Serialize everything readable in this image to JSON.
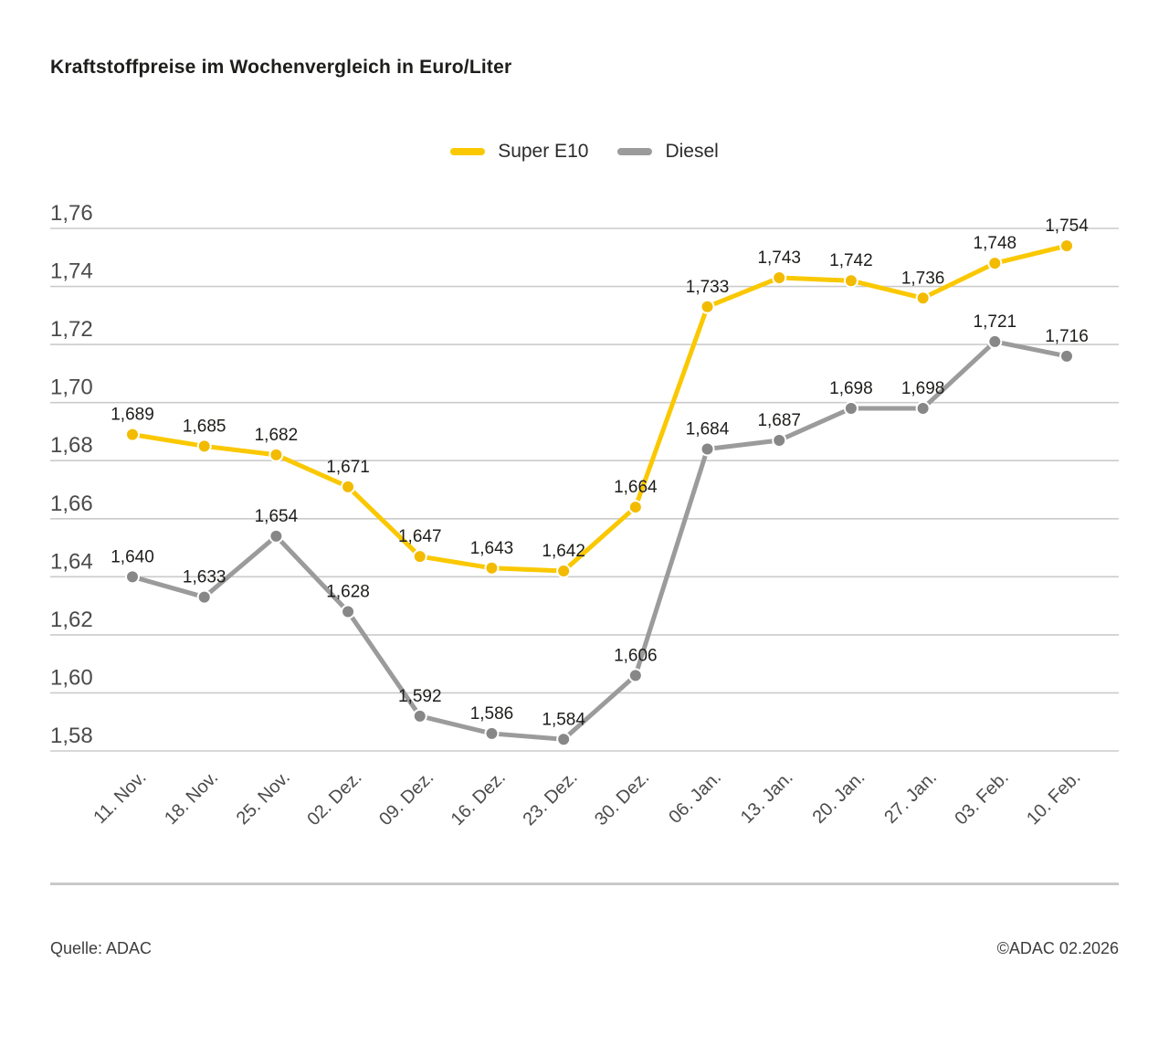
{
  "title": "Kraftstoffpreise im Wochenvergleich in Euro/Liter",
  "legend": {
    "items": [
      {
        "label": "Super E10",
        "color": "#FAC800"
      },
      {
        "label": "Diesel",
        "color": "#9B9B9B"
      }
    ]
  },
  "chart_data": {
    "type": "line",
    "title": "Kraftstoffpreise im Wochenvergleich in Euro/Liter",
    "unit": "Euro/Liter",
    "categories": [
      "11. Nov.",
      "18. Nov.",
      "25. Nov.",
      "02. Dez.",
      "09. Dez.",
      "16. Dez.",
      "23. Dez.",
      "30. Dez.",
      "06. Jan.",
      "13. Jan.",
      "20. Jan.",
      "27. Jan.",
      "03. Feb.",
      "10. Feb."
    ],
    "series": [
      {
        "name": "Super E10",
        "color": "#FAC800",
        "marker_color": "#F2BB00",
        "values": [
          1.689,
          1.685,
          1.682,
          1.671,
          1.647,
          1.643,
          1.642,
          1.664,
          1.733,
          1.743,
          1.742,
          1.736,
          1.748,
          1.754
        ],
        "labels": [
          "1,689",
          "1,685",
          "1,682",
          "1,671",
          "1,647",
          "1,643",
          "1,642",
          "1,664",
          "1,733",
          "1,743",
          "1,742",
          "1,736",
          "1,748",
          "1,754"
        ]
      },
      {
        "name": "Diesel",
        "color": "#9B9B9B",
        "marker_color": "#878787",
        "values": [
          1.64,
          1.633,
          1.654,
          1.628,
          1.592,
          1.586,
          1.584,
          1.606,
          1.684,
          1.687,
          1.698,
          1.698,
          1.721,
          1.716
        ],
        "labels": [
          "1,640",
          "1,633",
          "1,654",
          "1,628",
          "1,592",
          "1,586",
          "1,584",
          "1,606",
          "1,684",
          "1,687",
          "1,698",
          "1,698",
          "1,721",
          "1,716"
        ]
      }
    ],
    "ylim": [
      1.58,
      1.76
    ],
    "ytick_step": 0.02,
    "yticks": [
      {
        "value": 1.58,
        "label": "1,58"
      },
      {
        "value": 1.6,
        "label": "1,60"
      },
      {
        "value": 1.62,
        "label": "1,62"
      },
      {
        "value": 1.64,
        "label": "1,64"
      },
      {
        "value": 1.66,
        "label": "1,66"
      },
      {
        "value": 1.68,
        "label": "1,68"
      },
      {
        "value": 1.7,
        "label": "1,70"
      },
      {
        "value": 1.72,
        "label": "1,72"
      },
      {
        "value": 1.74,
        "label": "1,74"
      },
      {
        "value": 1.76,
        "label": "1,76"
      }
    ],
    "grid": true,
    "grid_color": "#CBCBCB",
    "legend_position": "top-center"
  },
  "footer": {
    "source": "Quelle: ADAC",
    "copyright": "©ADAC 02.2026"
  }
}
